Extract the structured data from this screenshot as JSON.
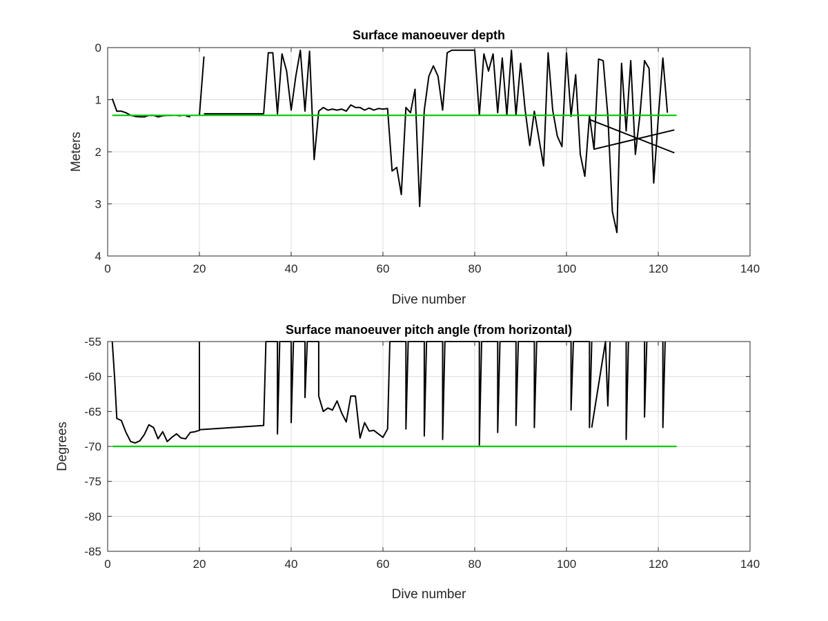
{
  "chart_data": [
    {
      "type": "line",
      "title": "Surface manoeuver depth",
      "xlabel": "Dive number",
      "ylabel": "Meters",
      "xlim": [
        0,
        140
      ],
      "ylim": [
        0,
        4
      ],
      "y_reversed": true,
      "xticks": [
        "0",
        "20",
        "40",
        "60",
        "80",
        "100",
        "120",
        "140"
      ],
      "yticks": [
        "0",
        "1",
        "2",
        "3",
        "4"
      ],
      "grid": true,
      "series": [
        {
          "color": "#000000",
          "segments": [
            [
              [
                1,
                0.98
              ],
              [
                2,
                1.22
              ],
              [
                3,
                1.22
              ],
              [
                4,
                1.25
              ],
              [
                5,
                1.3
              ],
              [
                6,
                1.32
              ],
              [
                7,
                1.33
              ],
              [
                8,
                1.33
              ],
              [
                9,
                1.3
              ],
              [
                10,
                1.3
              ],
              [
                11,
                1.33
              ],
              [
                12,
                1.31
              ],
              [
                13,
                1.3
              ],
              [
                14,
                1.3
              ]
            ],
            [
              [
                15,
                1.3
              ],
              [
                16,
                1.31
              ]
            ],
            [
              [
                17,
                1.31
              ],
              [
                18,
                1.33
              ]
            ],
            [
              [
                20,
                1.3
              ],
              [
                21,
                0.17
              ]
            ],
            [
              [
                21,
                1.27
              ],
              [
                25,
                1.27
              ],
              [
                30,
                1.27
              ],
              [
                34,
                1.27
              ],
              [
                35,
                0.1
              ],
              [
                36,
                0.1
              ],
              [
                37,
                1.27
              ],
              [
                38,
                0.12
              ],
              [
                39,
                0.45
              ],
              [
                40,
                1.2
              ],
              [
                41,
                0.55
              ],
              [
                42,
                0.05
              ],
              [
                43,
                1.22
              ],
              [
                44,
                0.07
              ],
              [
                45,
                2.15
              ],
              [
                46,
                1.22
              ],
              [
                47,
                1.15
              ],
              [
                48,
                1.2
              ],
              [
                49,
                1.18
              ],
              [
                50,
                1.2
              ],
              [
                51,
                1.18
              ],
              [
                52,
                1.22
              ],
              [
                53,
                1.1
              ],
              [
                54,
                1.15
              ],
              [
                55,
                1.15
              ],
              [
                56,
                1.2
              ],
              [
                57,
                1.16
              ],
              [
                58,
                1.2
              ],
              [
                59,
                1.17
              ],
              [
                60,
                1.18
              ],
              [
                61,
                1.17
              ],
              [
                62,
                2.37
              ],
              [
                63,
                2.3
              ],
              [
                64,
                2.82
              ],
              [
                65,
                1.15
              ],
              [
                66,
                1.25
              ],
              [
                67,
                0.8
              ],
              [
                68,
                3.05
              ],
              [
                69,
                1.2
              ],
              [
                70,
                0.55
              ],
              [
                71,
                0.35
              ],
              [
                72,
                0.55
              ],
              [
                73,
                1.2
              ],
              [
                74,
                0.1
              ],
              [
                75,
                0.05
              ],
              [
                76,
                0.05
              ],
              [
                77,
                0.05
              ],
              [
                78,
                0.05
              ],
              [
                79,
                0.05
              ],
              [
                80,
                0.05
              ],
              [
                81,
                1.3
              ],
              [
                82,
                0.12
              ],
              [
                83,
                0.45
              ],
              [
                84,
                0.12
              ],
              [
                85,
                1.25
              ],
              [
                86,
                0.2
              ],
              [
                87,
                1.3
              ],
              [
                88,
                0.05
              ],
              [
                89,
                1.3
              ],
              [
                90,
                0.3
              ],
              [
                91,
                1.2
              ],
              [
                92,
                1.88
              ],
              [
                93,
                1.22
              ],
              [
                94,
                1.75
              ],
              [
                95,
                2.27
              ],
              [
                96,
                0.1
              ],
              [
                97,
                1.2
              ],
              [
                98,
                1.7
              ],
              [
                99,
                1.9
              ],
              [
                100,
                0.1
              ],
              [
                101,
                1.32
              ],
              [
                102,
                0.52
              ],
              [
                103,
                2.05
              ],
              [
                104,
                2.47
              ],
              [
                105,
                1.3
              ],
              [
                106,
                1.95
              ],
              [
                107,
                0.22
              ],
              [
                108,
                0.25
              ],
              [
                109,
                1.3
              ],
              [
                110,
                3.15
              ],
              [
                111,
                3.55
              ],
              [
                112,
                0.3
              ],
              [
                113,
                1.6
              ],
              [
                114,
                0.25
              ],
              [
                115,
                2.05
              ],
              [
                116,
                1.3
              ],
              [
                117,
                0.25
              ],
              [
                118,
                0.4
              ],
              [
                119,
                2.6
              ],
              [
                120,
                1.35
              ],
              [
                121,
                0.2
              ],
              [
                122,
                1.25
              ]
            ],
            [
              [
                105,
                1.38
              ],
              [
                123.5,
                2.02
              ]
            ],
            [
              [
                106,
                1.95
              ],
              [
                123.5,
                1.58
              ]
            ]
          ]
        },
        {
          "color": "#00c800",
          "segments": [
            [
              [
                1,
                1.3
              ],
              [
                124,
                1.3
              ]
            ]
          ]
        }
      ]
    },
    {
      "type": "line",
      "title": "Surface manoeuver pitch angle (from horizontal)",
      "xlabel": "Dive number",
      "ylabel": "Degrees",
      "xlim": [
        0,
        140
      ],
      "ylim": [
        -85,
        -55
      ],
      "xticks": [
        "0",
        "20",
        "40",
        "60",
        "80",
        "100",
        "120",
        "140"
      ],
      "yticks": [
        "-55",
        "-60",
        "-65",
        "-70",
        "-75",
        "-80",
        "-85"
      ],
      "grid": true,
      "series": [
        {
          "color": "#000000",
          "segments": [
            [
              [
                1,
                -55
              ],
              [
                1.5,
                -60
              ],
              [
                2,
                -66
              ],
              [
                3,
                -66.3
              ],
              [
                4,
                -68
              ],
              [
                5,
                -69.3
              ],
              [
                6,
                -69.5
              ],
              [
                7,
                -69.2
              ],
              [
                8,
                -68.3
              ],
              [
                9,
                -66.9
              ],
              [
                10,
                -67.3
              ],
              [
                11,
                -68.9
              ],
              [
                12,
                -67.9
              ],
              [
                13,
                -69.3
              ],
              [
                14,
                -68.7
              ],
              [
                15,
                -68.2
              ],
              [
                16,
                -68.8
              ],
              [
                17,
                -68.9
              ],
              [
                18,
                -68
              ],
              [
                19,
                -67.9
              ],
              [
                20,
                -67.7
              ],
              [
                20,
                -55
              ]
            ],
            [
              [
                20,
                -67.6
              ],
              [
                34,
                -67
              ],
              [
                34.5,
                -55
              ],
              [
                37,
                -55
              ],
              [
                37,
                -68.2
              ],
              [
                37.5,
                -55
              ],
              [
                40,
                -55
              ],
              [
                40,
                -66.6
              ],
              [
                40.5,
                -55
              ],
              [
                43,
                -55
              ],
              [
                43,
                -63
              ],
              [
                43.5,
                -55
              ],
              [
                46,
                -55
              ],
              [
                46,
                -62.8
              ],
              [
                47,
                -65
              ],
              [
                48,
                -64.5
              ],
              [
                49,
                -64.8
              ],
              [
                50,
                -63.5
              ],
              [
                51,
                -65.2
              ],
              [
                52,
                -66.5
              ],
              [
                53,
                -62.8
              ],
              [
                54,
                -62.8
              ],
              [
                55,
                -68.8
              ],
              [
                56,
                -66.6
              ],
              [
                57,
                -67.8
              ],
              [
                58,
                -67.7
              ],
              [
                59,
                -68.2
              ],
              [
                60,
                -68.7
              ],
              [
                61,
                -67.5
              ],
              [
                61.5,
                -55
              ],
              [
                65,
                -55
              ],
              [
                65,
                -67.5
              ],
              [
                65.5,
                -55
              ],
              [
                69,
                -55
              ],
              [
                69,
                -68.5
              ],
              [
                69.5,
                -55
              ],
              [
                73,
                -55
              ],
              [
                73,
                -69
              ],
              [
                73.5,
                -55
              ],
              [
                81,
                -55
              ],
              [
                81,
                -69.8
              ],
              [
                81.5,
                -55
              ],
              [
                85,
                -55
              ],
              [
                85,
                -68
              ],
              [
                85.5,
                -55
              ],
              [
                89,
                -55
              ],
              [
                89,
                -67
              ],
              [
                89.5,
                -55
              ],
              [
                93,
                -55
              ],
              [
                93,
                -67.3
              ],
              [
                93.5,
                -55
              ],
              [
                101,
                -55
              ],
              [
                101,
                -64.8
              ],
              [
                101.5,
                -55
              ],
              [
                105,
                -55
              ],
              [
                105,
                -67.3
              ],
              [
                105.5,
                -55
              ]
            ],
            [
              [
                105.5,
                -67.3
              ],
              [
                108.5,
                -55
              ],
              [
                109,
                -64.2
              ],
              [
                109.5,
                -55
              ]
            ],
            [
              [
                113,
                -55
              ],
              [
                113,
                -69
              ],
              [
                113.5,
                -55
              ]
            ],
            [
              [
                117,
                -55
              ],
              [
                117,
                -65.8
              ],
              [
                117.5,
                -55
              ]
            ],
            [
              [
                121,
                -55
              ],
              [
                121,
                -67.3
              ],
              [
                121.5,
                -55
              ]
            ]
          ]
        },
        {
          "color": "#00c800",
          "segments": [
            [
              [
                1,
                -70
              ],
              [
                124,
                -70
              ]
            ]
          ]
        }
      ]
    }
  ]
}
